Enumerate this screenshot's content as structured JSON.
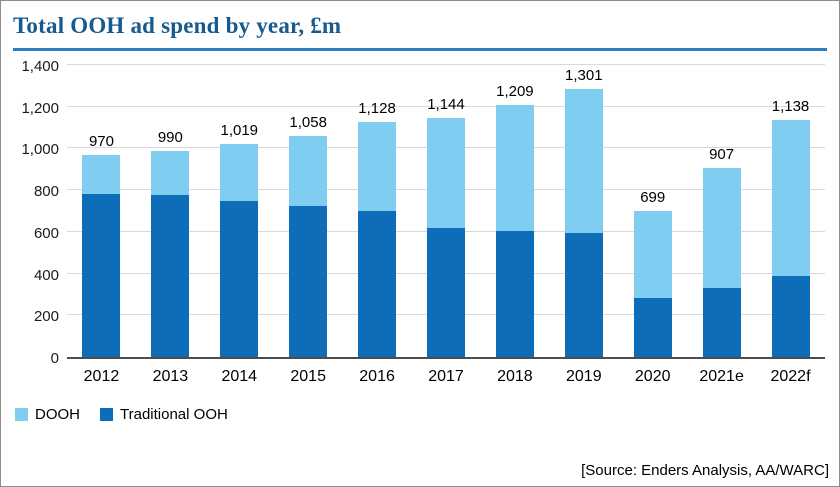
{
  "title": "Total OOH ad spend by year, £m",
  "legend": [
    {
      "label": "DOOH",
      "color": "#7fcdf0"
    },
    {
      "label": "Traditional OOH",
      "color": "#0d6db8"
    }
  ],
  "source": "[Source: Enders Analysis, AA/WARC]",
  "colors": {
    "title": "#175a8e",
    "title_rule": "#2e7fbf",
    "dooh": "#7fcdf0",
    "traditional": "#0d6db8",
    "gridline": "#d9d9d9",
    "axis": "#4d4d4d"
  },
  "chart_data": {
    "type": "bar",
    "stacked": true,
    "title": "Total OOH ad spend by year, £m",
    "xlabel": "",
    "ylabel": "",
    "categories": [
      "2012",
      "2013",
      "2014",
      "2015",
      "2016",
      "2017",
      "2018",
      "2019",
      "2020",
      "2021e",
      "2022f"
    ],
    "series": [
      {
        "name": "Traditional OOH",
        "color": "#0d6db8",
        "values": [
          783,
          775,
          747,
          722,
          698,
          617,
          605,
          604,
          285,
          330,
          390
        ]
      },
      {
        "name": "DOOH",
        "color": "#7fcdf0",
        "values": [
          187,
          215,
          272,
          336,
          430,
          527,
          604,
          697,
          414,
          577,
          748
        ]
      }
    ],
    "totals": [
      970,
      990,
      1019,
      1058,
      1128,
      1144,
      1209,
      1301,
      699,
      907,
      1138
    ],
    "ylim": [
      0,
      1400
    ],
    "ytick_step": 200,
    "grid": true,
    "legend_position": "bottom-left"
  }
}
